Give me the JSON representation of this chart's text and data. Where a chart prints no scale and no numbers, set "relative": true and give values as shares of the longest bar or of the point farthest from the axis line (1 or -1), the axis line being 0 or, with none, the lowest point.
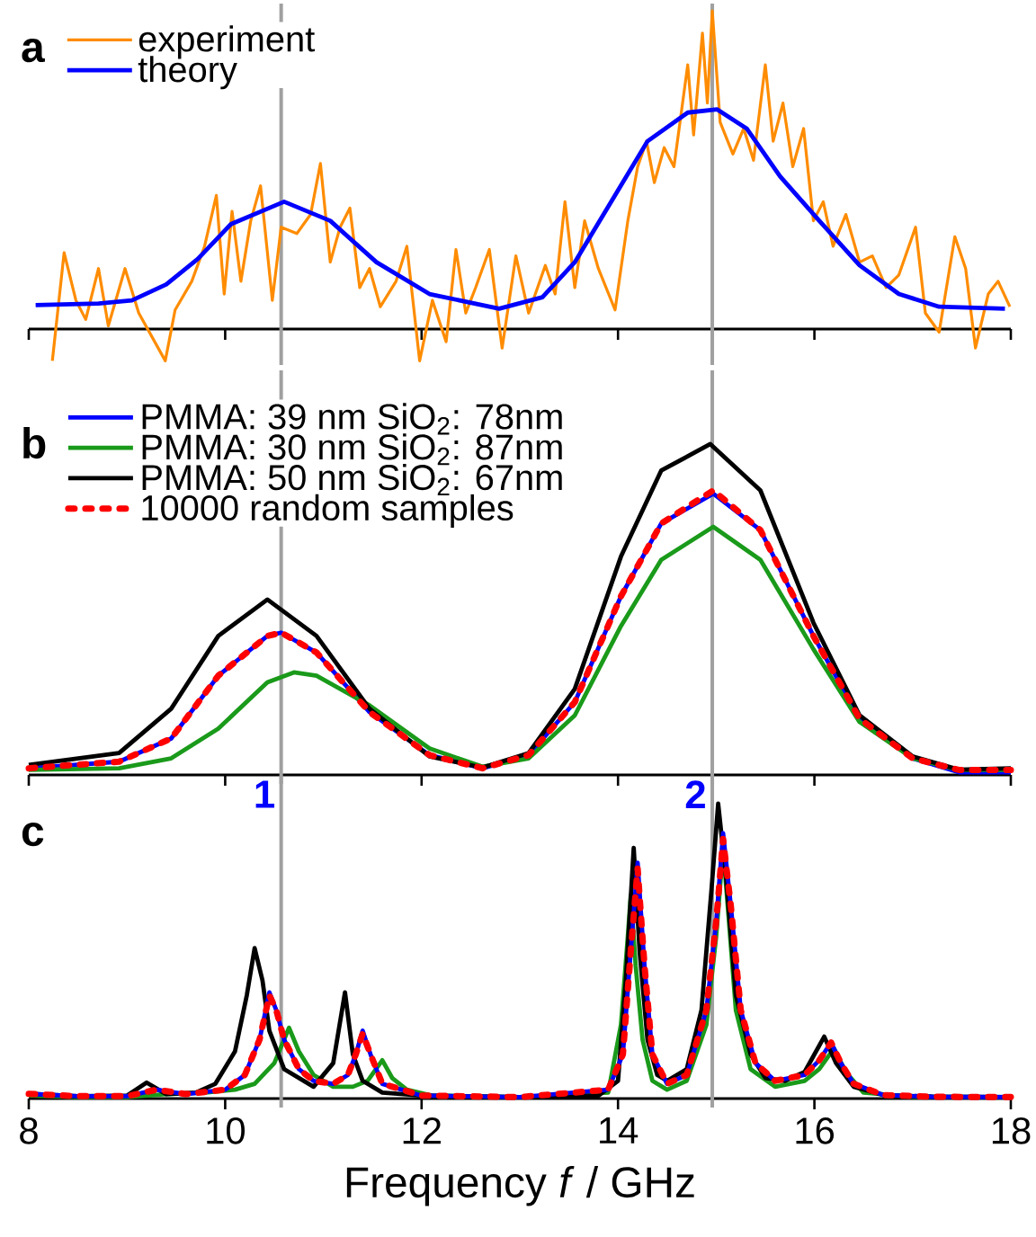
{
  "chart_data": [
    {
      "type": "line",
      "relative": true,
      "title": "a",
      "xlim": [
        8,
        18
      ],
      "xticks": [
        8,
        10,
        12,
        14,
        16,
        18
      ],
      "tick_labels": false,
      "legend": "top left",
      "ref_lines": [
        {
          "axis": "x",
          "value": 10.57,
          "color": "#a0a0a0"
        },
        {
          "axis": "x",
          "value": 14.96,
          "color": "#a0a0a0"
        }
      ],
      "series": [
        {
          "name": "experiment",
          "color": "#ff8c00",
          "x": [
            8.24,
            8.36,
            8.48,
            8.58,
            8.71,
            8.81,
            8.98,
            9.12,
            9.39,
            9.49,
            9.66,
            9.79,
            9.91,
            9.99,
            10.07,
            10.16,
            10.26,
            10.36,
            10.48,
            10.57,
            10.73,
            10.87,
            10.97,
            11.07,
            11.17,
            11.27,
            11.37,
            11.47,
            11.58,
            11.74,
            11.85,
            11.98,
            12.11,
            12.25,
            12.35,
            12.45,
            12.55,
            12.69,
            12.82,
            12.96,
            13.09,
            13.26,
            13.36,
            13.46,
            13.56,
            13.66,
            13.8,
            13.97,
            14.1,
            14.2,
            14.29,
            14.37,
            14.47,
            14.57,
            14.71,
            14.77,
            14.86,
            14.91,
            14.96,
            15.04,
            15.17,
            15.28,
            15.38,
            15.5,
            15.58,
            15.68,
            15.78,
            15.89,
            15.99,
            16.09,
            16.19,
            16.32,
            16.46,
            16.59,
            16.73,
            16.86,
            17.03,
            17.13,
            17.27,
            17.43,
            17.54,
            17.64,
            17.77,
            17.87,
            17.99
          ],
          "values": [
            -0.1,
            0.24,
            0.09,
            0.03,
            0.19,
            0.01,
            0.19,
            0.05,
            -0.1,
            0.06,
            0.15,
            0.26,
            0.42,
            0.11,
            0.37,
            0.15,
            0.34,
            0.45,
            0.09,
            0.32,
            0.3,
            0.36,
            0.52,
            0.21,
            0.32,
            0.38,
            0.13,
            0.19,
            0.07,
            0.15,
            0.26,
            -0.1,
            0.09,
            -0.04,
            0.25,
            0.05,
            0.13,
            0.25,
            -0.06,
            0.23,
            0.05,
            0.2,
            0.11,
            0.4,
            0.13,
            0.34,
            0.19,
            0.06,
            0.34,
            0.51,
            0.59,
            0.46,
            0.57,
            0.51,
            0.83,
            0.61,
            0.93,
            0.71,
            1.0,
            0.65,
            0.55,
            0.63,
            0.53,
            0.83,
            0.59,
            0.71,
            0.51,
            0.63,
            0.34,
            0.4,
            0.26,
            0.36,
            0.21,
            0.23,
            0.13,
            0.17,
            0.32,
            0.05,
            -0.01,
            0.29,
            0.19,
            -0.06,
            0.11,
            0.15,
            0.07
          ]
        },
        {
          "name": "theory",
          "color": "#0000ff",
          "x": [
            8.07,
            8.71,
            9.05,
            9.4,
            9.72,
            10.06,
            10.6,
            11.07,
            11.54,
            12.08,
            12.79,
            13.23,
            13.56,
            13.97,
            14.3,
            14.71,
            15.01,
            15.31,
            15.65,
            16.05,
            16.46,
            16.86,
            17.27,
            17.94
          ],
          "values": [
            0.075,
            0.08,
            0.09,
            0.14,
            0.22,
            0.33,
            0.4,
            0.34,
            0.21,
            0.11,
            0.064,
            0.1,
            0.21,
            0.42,
            0.59,
            0.68,
            0.69,
            0.63,
            0.48,
            0.34,
            0.2,
            0.11,
            0.07,
            0.064
          ]
        }
      ]
    },
    {
      "type": "line",
      "relative": true,
      "title": "b",
      "xlim": [
        8,
        18
      ],
      "xticks": [
        8,
        10,
        12,
        14,
        16,
        18
      ],
      "tick_labels": false,
      "legend": "top left",
      "ref_lines": [
        {
          "axis": "x",
          "value": 10.57,
          "color": "#a0a0a0"
        },
        {
          "axis": "x",
          "value": 14.96,
          "color": "#a0a0a0"
        }
      ],
      "series": [
        {
          "name": "PMMA: 39 nm SiO$_{2}$: 78nm",
          "color": "#0000ff",
          "x": [
            8.0,
            8.92,
            9.45,
            9.93,
            10.43,
            10.57,
            10.93,
            11.47,
            12.08,
            12.62,
            13.09,
            13.56,
            14.03,
            14.44,
            14.97,
            15.45,
            15.99,
            16.46,
            17.0,
            17.47,
            18.0
          ],
          "values": [
            0.02,
            0.04,
            0.11,
            0.3,
            0.42,
            0.43,
            0.37,
            0.19,
            0.06,
            0.02,
            0.06,
            0.22,
            0.54,
            0.76,
            0.85,
            0.74,
            0.42,
            0.17,
            0.05,
            0.008,
            0.008
          ]
        },
        {
          "name": "PMMA: 30 nm SiO$_{2}$: 87nm",
          "color": "#1a9a1a",
          "x": [
            8.0,
            8.92,
            9.45,
            9.93,
            10.43,
            10.7,
            10.93,
            11.47,
            12.08,
            12.62,
            13.09,
            13.56,
            14.03,
            14.44,
            14.97,
            15.45,
            15.99,
            16.46,
            17.0,
            17.47,
            18.0
          ],
          "values": [
            0.015,
            0.02,
            0.05,
            0.14,
            0.28,
            0.31,
            0.3,
            0.21,
            0.08,
            0.025,
            0.05,
            0.18,
            0.45,
            0.65,
            0.75,
            0.65,
            0.38,
            0.16,
            0.05,
            0.015,
            0.015
          ]
        },
        {
          "name": "PMMA: 50 nm SiO$_{2}$: 67nm",
          "color": "#000000",
          "x": [
            8.0,
            8.92,
            9.45,
            9.93,
            10.43,
            10.93,
            11.47,
            12.08,
            12.62,
            13.09,
            13.56,
            14.03,
            14.44,
            14.94,
            15.45,
            15.99,
            16.46,
            17.0,
            17.47,
            18.0
          ],
          "values": [
            0.03,
            0.066,
            0.2,
            0.42,
            0.53,
            0.42,
            0.2,
            0.056,
            0.022,
            0.066,
            0.26,
            0.66,
            0.92,
            1.0,
            0.86,
            0.46,
            0.18,
            0.056,
            0.016,
            0.02
          ]
        },
        {
          "name": "10000 random samples",
          "color": "#ff0000",
          "line_style": "dashed",
          "x": [
            8.0,
            8.92,
            9.45,
            9.93,
            10.43,
            10.57,
            10.93,
            11.47,
            12.08,
            12.62,
            13.09,
            13.56,
            14.03,
            14.44,
            14.97,
            15.45,
            15.99,
            16.46,
            17.0,
            17.47,
            18.0
          ],
          "values": [
            0.02,
            0.04,
            0.11,
            0.3,
            0.42,
            0.43,
            0.37,
            0.19,
            0.06,
            0.02,
            0.06,
            0.22,
            0.54,
            0.76,
            0.86,
            0.74,
            0.42,
            0.17,
            0.05,
            0.015,
            0.015
          ]
        }
      ]
    },
    {
      "type": "line",
      "relative": true,
      "title": "c",
      "xlim": [
        8,
        18
      ],
      "xticks": [
        8,
        10,
        12,
        14,
        16,
        18
      ],
      "tick_labels": "x",
      "xlabel": "Frequency *f* / GHz",
      "annotations": [
        "1",
        "2"
      ],
      "ref_lines": [
        {
          "axis": "x",
          "value": 10.57,
          "color": "#a0a0a0"
        },
        {
          "axis": "x",
          "value": 14.96,
          "color": "#a0a0a0"
        }
      ],
      "series": [
        {
          "color": "#1a9a1a",
          "x": [
            8.0,
            8.5,
            9.0,
            9.4,
            9.8,
            10.1,
            10.3,
            10.5,
            10.6,
            10.65,
            10.75,
            10.9,
            11.1,
            11.3,
            11.45,
            11.6,
            11.7,
            11.85,
            12.1,
            13.0,
            13.9,
            14.03,
            14.1,
            14.13,
            14.18,
            14.25,
            14.35,
            14.5,
            14.7,
            14.9,
            15.0,
            15.07,
            15.13,
            15.2,
            15.35,
            15.6,
            15.9,
            16.05,
            16.2,
            16.32,
            16.5,
            17.0,
            18.0
          ],
          "values": [
            0.01,
            0.005,
            0.005,
            0.015,
            0.02,
            0.03,
            0.05,
            0.12,
            0.2,
            0.24,
            0.16,
            0.08,
            0.04,
            0.04,
            0.06,
            0.13,
            0.07,
            0.03,
            0.01,
            0.005,
            0.02,
            0.25,
            0.55,
            0.69,
            0.45,
            0.2,
            0.06,
            0.03,
            0.06,
            0.25,
            0.55,
            0.85,
            0.6,
            0.3,
            0.1,
            0.04,
            0.06,
            0.1,
            0.17,
            0.09,
            0.02,
            0.006,
            0.005
          ]
        },
        {
          "color": "#000000",
          "x": [
            8.0,
            8.5,
            9.0,
            9.2,
            9.4,
            9.7,
            9.9,
            10.1,
            10.22,
            10.3,
            10.38,
            10.45,
            10.6,
            10.9,
            11.1,
            11.22,
            11.3,
            11.4,
            11.6,
            12.0,
            13.0,
            13.8,
            14.0,
            14.08,
            14.16,
            14.22,
            14.3,
            14.4,
            14.5,
            14.7,
            14.85,
            14.95,
            15.02,
            15.1,
            15.2,
            15.35,
            15.5,
            15.7,
            15.9,
            16.1,
            16.22,
            16.4,
            16.7,
            17.2,
            18.0
          ],
          "values": [
            0.016,
            0.008,
            0.01,
            0.054,
            0.015,
            0.02,
            0.05,
            0.16,
            0.35,
            0.51,
            0.4,
            0.23,
            0.1,
            0.04,
            0.12,
            0.36,
            0.15,
            0.06,
            0.02,
            0.01,
            0.005,
            0.01,
            0.06,
            0.4,
            0.85,
            0.5,
            0.2,
            0.08,
            0.06,
            0.1,
            0.3,
            0.7,
            1.0,
            0.75,
            0.35,
            0.15,
            0.07,
            0.06,
            0.09,
            0.21,
            0.12,
            0.04,
            0.012,
            0.006,
            0.005
          ]
        },
        {
          "color": "#0000ff",
          "x": [
            8.0,
            8.5,
            9.0,
            9.3,
            9.6,
            10.0,
            10.2,
            10.35,
            10.45,
            10.52,
            10.6,
            10.75,
            10.9,
            11.1,
            11.25,
            11.33,
            11.4,
            11.48,
            11.6,
            12.0,
            13.0,
            13.9,
            14.05,
            14.13,
            14.2,
            14.27,
            14.35,
            14.5,
            14.7,
            14.9,
            15.0,
            15.07,
            15.15,
            15.25,
            15.4,
            15.6,
            15.9,
            16.05,
            16.17,
            16.27,
            16.4,
            16.7,
            17.2,
            18.0
          ],
          "values": [
            0.016,
            0.008,
            0.008,
            0.03,
            0.015,
            0.03,
            0.08,
            0.2,
            0.36,
            0.3,
            0.2,
            0.1,
            0.06,
            0.05,
            0.08,
            0.15,
            0.23,
            0.15,
            0.05,
            0.01,
            0.005,
            0.03,
            0.15,
            0.5,
            0.8,
            0.45,
            0.15,
            0.05,
            0.08,
            0.3,
            0.6,
            0.9,
            0.65,
            0.3,
            0.12,
            0.06,
            0.08,
            0.13,
            0.19,
            0.12,
            0.05,
            0.012,
            0.006,
            0.005
          ]
        },
        {
          "color": "#ff0000",
          "line_style": "dashed",
          "x": [
            8.0,
            8.5,
            9.0,
            9.3,
            9.6,
            10.0,
            10.2,
            10.35,
            10.45,
            10.52,
            10.6,
            10.75,
            10.9,
            11.1,
            11.25,
            11.33,
            11.4,
            11.48,
            11.6,
            12.0,
            13.0,
            13.9,
            14.05,
            14.13,
            14.2,
            14.27,
            14.35,
            14.5,
            14.7,
            14.9,
            15.0,
            15.07,
            15.15,
            15.25,
            15.4,
            15.6,
            15.9,
            16.05,
            16.17,
            16.27,
            16.4,
            16.7,
            17.2,
            18.0
          ],
          "values": [
            0.016,
            0.008,
            0.008,
            0.03,
            0.015,
            0.03,
            0.08,
            0.2,
            0.35,
            0.3,
            0.2,
            0.1,
            0.06,
            0.05,
            0.08,
            0.15,
            0.22,
            0.15,
            0.05,
            0.01,
            0.005,
            0.03,
            0.15,
            0.5,
            0.78,
            0.45,
            0.15,
            0.05,
            0.08,
            0.3,
            0.6,
            0.88,
            0.65,
            0.3,
            0.12,
            0.06,
            0.08,
            0.13,
            0.19,
            0.12,
            0.05,
            0.012,
            0.006,
            0.005
          ]
        }
      ]
    }
  ]
}
